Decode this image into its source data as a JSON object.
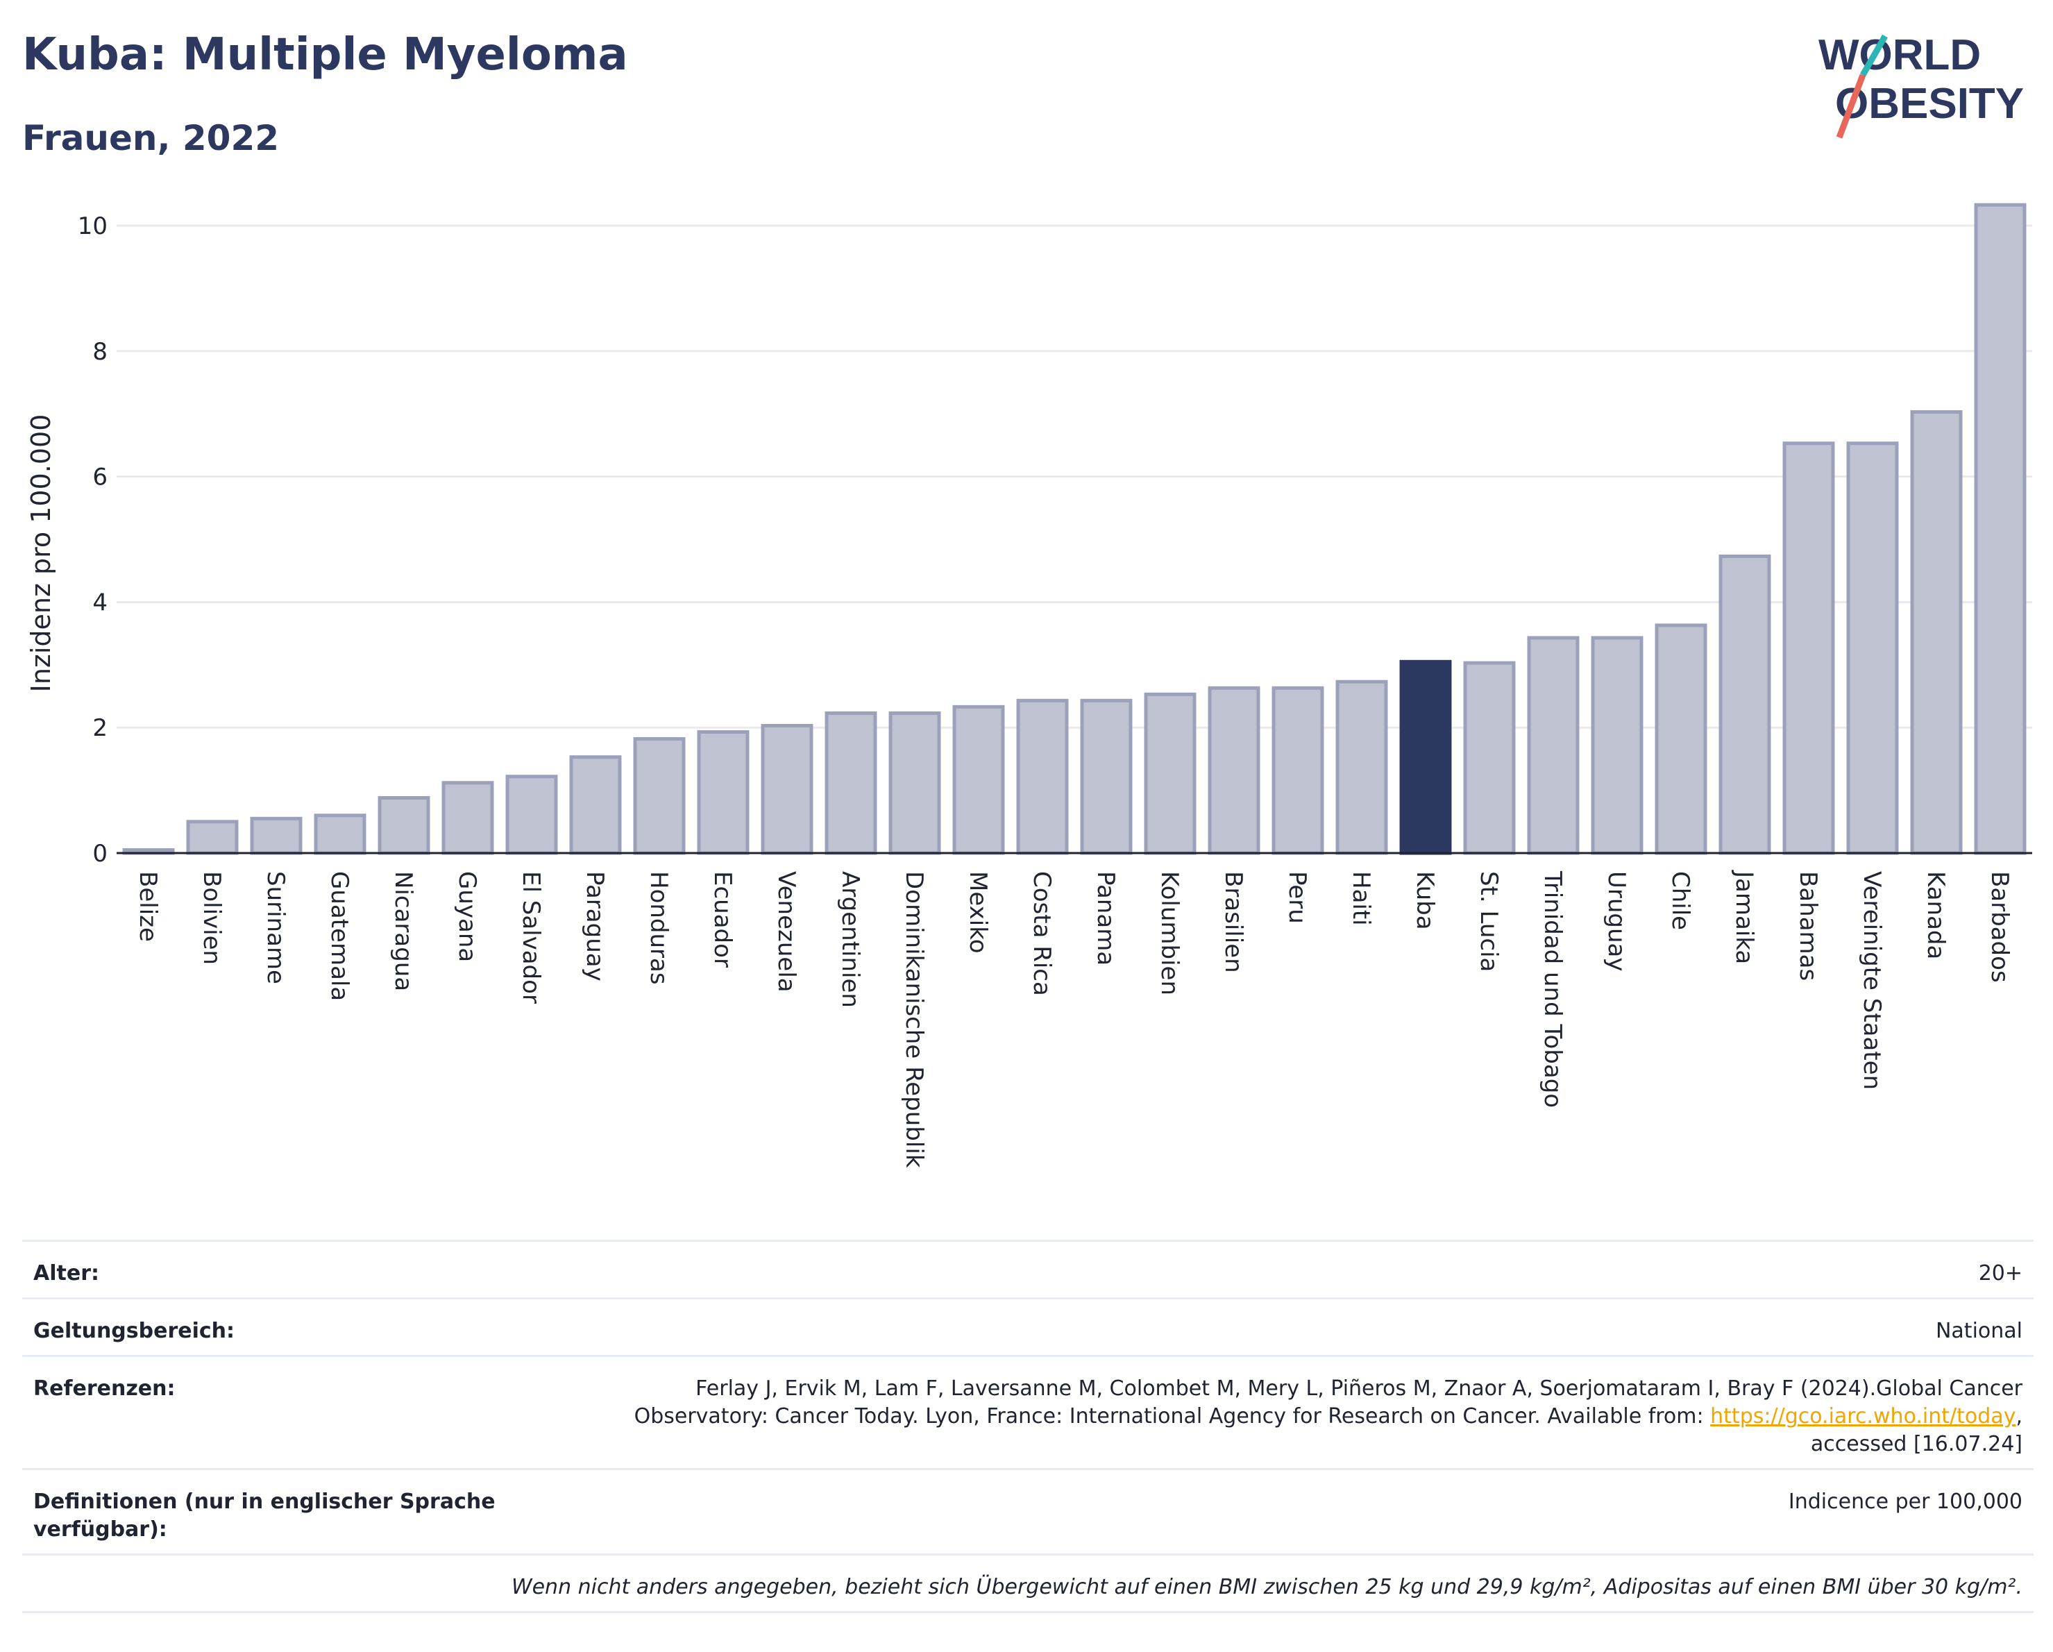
{
  "header": {
    "title": "Kuba: Multiple Myeloma",
    "subtitle": "Frauen, 2022"
  },
  "logo": {
    "line1": "WORLD",
    "line2": "OBESITY"
  },
  "colors": {
    "bar": "#bfc3d1",
    "bar_border": "#9ba1b9",
    "highlight": "#2d3861",
    "grid": "#e8eaf0"
  },
  "chart_data": {
    "type": "bar",
    "ylabel": "Inzidenz pro 100.000",
    "ylim": [
      0,
      10.5
    ],
    "yticks": [
      0,
      2,
      4,
      6,
      8,
      10
    ],
    "highlight": "Kuba",
    "categories": [
      "Belize",
      "Bolivien",
      "Suriname",
      "Guatemala",
      "Nicaragua",
      "Guyana",
      "El Salvador",
      "Paraguay",
      "Honduras",
      "Ecuador",
      "Venezuela",
      "Argentinien",
      "Dominikanische Republik",
      "Mexiko",
      "Costa Rica",
      "Panama",
      "Kolumbien",
      "Brasilien",
      "Peru",
      "Haiti",
      "Kuba",
      "St. Lucia",
      "Trinidad und Tobago",
      "Uruguay",
      "Chile",
      "Jamaika",
      "Bahamas",
      "Vereinigte Staaten",
      "Kanada",
      "Barbados"
    ],
    "values": [
      0.05,
      0.5,
      0.55,
      0.6,
      0.88,
      1.12,
      1.22,
      1.53,
      1.82,
      1.93,
      2.03,
      2.23,
      2.23,
      2.33,
      2.43,
      2.43,
      2.53,
      2.63,
      2.63,
      2.73,
      3.05,
      3.03,
      3.43,
      3.43,
      3.63,
      4.73,
      6.53,
      6.53,
      7.03,
      10.33
    ]
  },
  "meta": {
    "age_label": "Alter:",
    "age_value": "20+",
    "scope_label": "Geltungsbereich:",
    "scope_value": "National",
    "refs_label": "Referenzen:",
    "refs_text1": "Ferlay J, Ervik M, Lam F, Laversanne M, Colombet M, Mery L, Piñeros M, Znaor A, Soerjomataram I, Bray F (2024).Global Cancer",
    "refs_text2": "Observatory: Cancer Today. Lyon, France: International Agency for Research on Cancer. Available from: ",
    "refs_link": "https://gco.iarc.who.int/today",
    "refs_text3": ",",
    "refs_text4": "accessed [16.07.24]",
    "def_label": "Definitionen (nur in englischer Sprache verfügbar):",
    "def_value": "Indicence per 100,000",
    "note": "Wenn nicht anders angegeben, bezieht sich Übergewicht auf einen BMI zwischen 25 kg und 29,9 kg/m², Adipositas auf einen BMI über 30 kg/m²."
  }
}
